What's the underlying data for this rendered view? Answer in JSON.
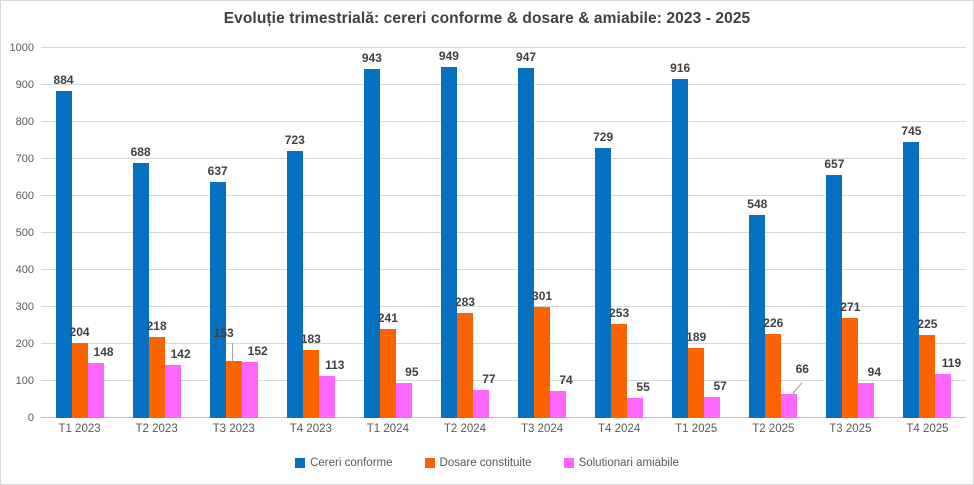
{
  "chart_data": {
    "type": "bar",
    "title": "Evoluție trimestrială: cereri conforme & dosare & amiabile: 2023 - 2025",
    "categories": [
      "T1 2023",
      "T2 2023",
      "T3 2023",
      "T4 2023",
      "T1 2024",
      "T2 2024",
      "T3 2024",
      "T4 2024",
      "T1 2025",
      "T2 2025",
      "T3 2025",
      "T4 2025"
    ],
    "series": [
      {
        "name": "Cereri conforme",
        "color": "#0771C1",
        "values": [
          884,
          688,
          637,
          723,
          943,
          949,
          947,
          729,
          916,
          548,
          657,
          745
        ]
      },
      {
        "name": "Dosare constituite",
        "color": "#FA6400",
        "values": [
          204,
          218,
          153,
          183,
          241,
          283,
          301,
          253,
          189,
          226,
          271,
          225
        ]
      },
      {
        "name": "Solutionari amiabile",
        "color": "#FF66FF",
        "values": [
          148,
          142,
          152,
          113,
          95,
          77,
          74,
          55,
          57,
          66,
          94,
          119
        ]
      }
    ],
    "ylim": [
      0,
      1000
    ],
    "ytick_step": 100,
    "grid": "horizontal",
    "legend_position": "bottom",
    "data_labels": true,
    "leader_line_points": [
      {
        "category": "T3 2023",
        "series": "Dosare constituite"
      },
      {
        "category": "T2 2025",
        "series": "Solutionari amiabile"
      }
    ],
    "colors": {
      "title_text": "#404040",
      "data_label_text": "#404040",
      "axis_text": "#595959",
      "gridline": "#D9D9D9",
      "axis_line": "#BFBFBF"
    }
  }
}
